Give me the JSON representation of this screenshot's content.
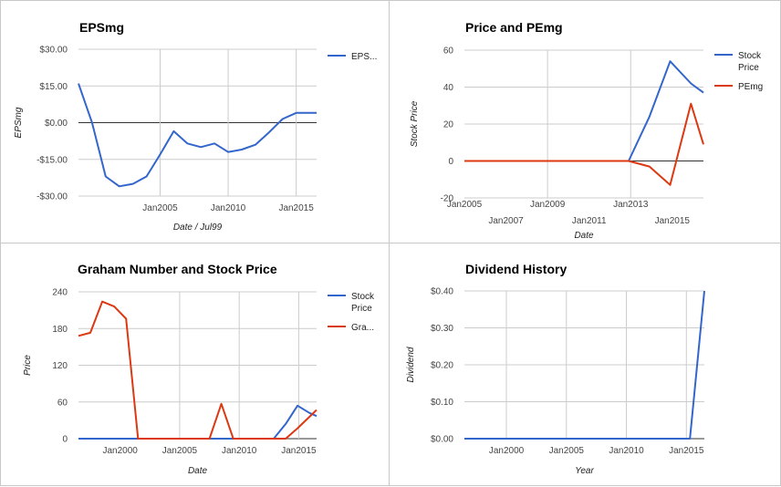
{
  "colors": {
    "blue": "#3366cc",
    "red": "#dc3912",
    "grid": "#cccccc",
    "zero": "#333333"
  },
  "chart_data": [
    {
      "type": "line",
      "title": "EPSmg",
      "xlabel": "Date / Jul99",
      "ylabel": "EPSmg",
      "xlim": [
        1999.0,
        2016.5
      ],
      "ylim": [
        -30,
        30
      ],
      "yticks": [
        30,
        15,
        0,
        -15,
        -30
      ],
      "ytick_labels": [
        "$30.00",
        "$15.00",
        "$0.00",
        "-$15.00",
        "-$30.00"
      ],
      "xticks": [
        2005,
        2010,
        2015
      ],
      "xtick_labels": [
        "Jan2005",
        "Jan2010",
        "Jan2015"
      ],
      "vgrid": [
        2005,
        2010,
        2015
      ],
      "legend_position": "right",
      "series": [
        {
          "name": "EPS...",
          "color": "#3366cc",
          "x": [
            1999.0,
            2000.0,
            2001.0,
            2002.0,
            2003.0,
            2004.0,
            2005.0,
            2006.0,
            2007.0,
            2008.0,
            2009.0,
            2010.0,
            2011.0,
            2012.0,
            2013.0,
            2014.0,
            2015.0,
            2016.5
          ],
          "y": [
            16,
            0,
            -22,
            -26,
            -25,
            -22,
            -13,
            -3.5,
            -8.5,
            -10,
            -8.5,
            -12,
            -11,
            -9,
            -4,
            1.5,
            4,
            4
          ]
        }
      ]
    },
    {
      "type": "line",
      "title": "Price and PEmg",
      "xlabel": "Date",
      "ylabel": "Stock Price",
      "xlim": [
        2005.0,
        2016.5
      ],
      "ylim": [
        -20,
        60
      ],
      "yticks": [
        60,
        40,
        20,
        0,
        -20
      ],
      "ytick_labels": [
        "60",
        "40",
        "20",
        "0",
        "-20"
      ],
      "xticks": [
        2005,
        2007,
        2009,
        2011,
        2013,
        2015
      ],
      "xtick_labels": [
        "Jan2005",
        "Jan2007",
        "Jan2009",
        "Jan2011",
        "Jan2013",
        "Jan2015"
      ],
      "vgrid": [
        2009,
        2013
      ],
      "legend_position": "right",
      "series": [
        {
          "name": "Stock Price",
          "color": "#3366cc",
          "x": [
            2005.0,
            2012.9,
            2013.9,
            2014.9,
            2015.9,
            2016.5
          ],
          "y": [
            0,
            0,
            24,
            54,
            42,
            37
          ]
        },
        {
          "name": "PEmg",
          "color": "#dc3912",
          "x": [
            2005.0,
            2012.9,
            2013.9,
            2014.9,
            2015.9,
            2016.5
          ],
          "y": [
            0,
            0,
            -3,
            -13,
            31,
            9
          ]
        }
      ]
    },
    {
      "type": "line",
      "title": "Graham Number and Stock Price",
      "xlabel": "Date",
      "ylabel": "Price",
      "xlim": [
        1996.5,
        2016.5
      ],
      "ylim": [
        0,
        240
      ],
      "yticks": [
        240,
        180,
        120,
        60,
        0
      ],
      "ytick_labels": [
        "240",
        "180",
        "120",
        "60",
        "0"
      ],
      "xticks": [
        2000,
        2005,
        2010,
        2015
      ],
      "xtick_labels": [
        "Jan2000",
        "Jan2005",
        "Jan2010",
        "Jan2015"
      ],
      "vgrid": [
        2005,
        2010,
        2015
      ],
      "legend_position": "right",
      "series": [
        {
          "name": "Stock Price",
          "color": "#3366cc",
          "x": [
            1996.5,
            2012.9,
            2013.9,
            2014.9,
            2015.9,
            2016.5
          ],
          "y": [
            0,
            0,
            24,
            54,
            42,
            37
          ]
        },
        {
          "name": "Gra...",
          "color": "#dc3912",
          "x": [
            1996.5,
            1997.5,
            1998.5,
            1999.5,
            2000.5,
            2001.5,
            2007.5,
            2008.5,
            2009.5,
            2013.9,
            2014.9,
            2016.5
          ],
          "y": [
            168,
            173,
            224,
            216,
            196,
            0,
            0,
            57,
            0,
            0,
            17,
            47
          ]
        }
      ]
    },
    {
      "type": "line",
      "title": "Dividend History",
      "xlabel": "Year",
      "ylabel": "Dividend",
      "xlim": [
        1996.5,
        2016.5
      ],
      "ylim": [
        0,
        0.4
      ],
      "yticks": [
        0.4,
        0.3,
        0.2,
        0.1,
        0
      ],
      "ytick_labels": [
        "$0.40",
        "$0.30",
        "$0.20",
        "$0.10",
        "$0.00"
      ],
      "xticks": [
        2000,
        2005,
        2010,
        2015
      ],
      "xtick_labels": [
        "Jan2000",
        "Jan2005",
        "Jan2010",
        "Jan2015"
      ],
      "vgrid": [
        2000,
        2005,
        2010,
        2015
      ],
      "legend_position": "none",
      "series": [
        {
          "name": "",
          "color": "#3366cc",
          "x": [
            1996.5,
            2015.3,
            2016.5
          ],
          "y": [
            0,
            0,
            0.4
          ]
        }
      ]
    }
  ]
}
